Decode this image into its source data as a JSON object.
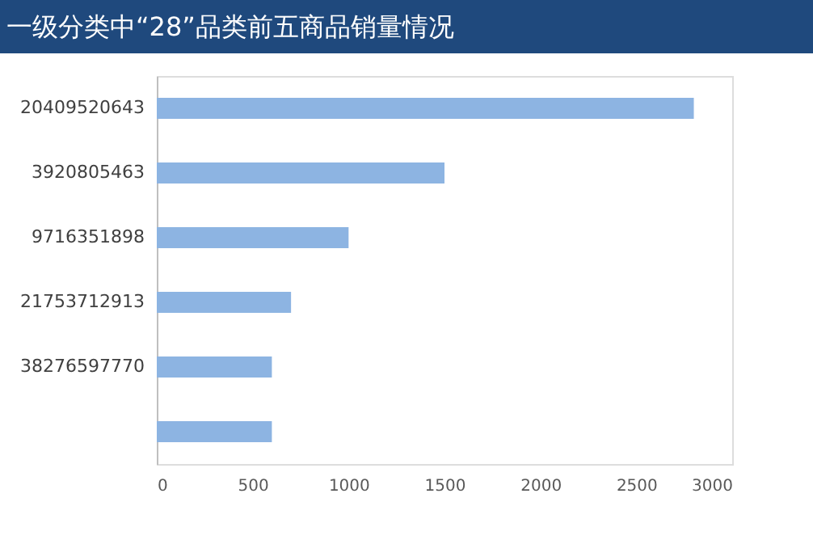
{
  "chart_data": {
    "type": "bar",
    "orientation": "horizontal",
    "title": "一级分类中“28”品类前五商品销量情况",
    "categories": [
      "20409520643",
      "3920805463",
      "9716351898",
      "21753712913",
      "38276597770",
      null
    ],
    "values": [
      2800,
      1500,
      1000,
      700,
      600,
      600
    ],
    "color": "#8db4e2",
    "xlim": [
      0,
      3000
    ],
    "xticks": [
      0,
      500,
      1000,
      1500,
      2000,
      2500,
      3000
    ],
    "grid": false
  }
}
